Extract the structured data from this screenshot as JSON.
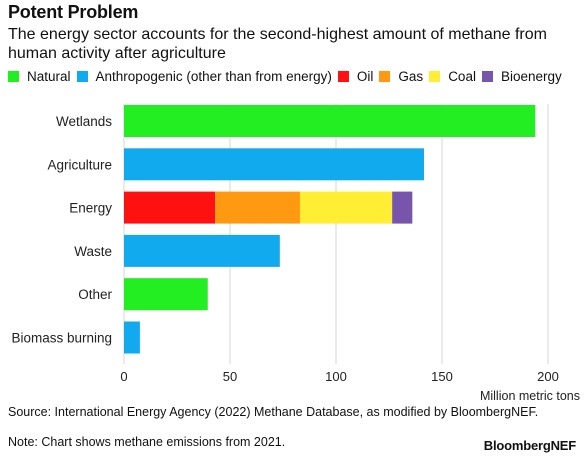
{
  "header": {
    "title": "Potent Problem",
    "subtitle": "The energy sector accounts for the second-highest amount of methane from human activity after agriculture"
  },
  "legend": {
    "items": [
      {
        "label": "Natural",
        "color": "#22ee22"
      },
      {
        "label": "Anthropogenic (other than from energy)",
        "color": "#11aaee"
      },
      {
        "label": "Oil",
        "color": "#ff1111"
      },
      {
        "label": "Gas",
        "color": "#ff9911"
      },
      {
        "label": "Coal",
        "color": "#ffee33"
      },
      {
        "label": "Bioenergy",
        "color": "#7755aa"
      }
    ]
  },
  "chart_data": {
    "type": "bar",
    "orientation": "horizontal",
    "stacked": true,
    "categories": [
      "Wetlands",
      "Agriculture",
      "Energy",
      "Waste",
      "Other",
      "Biomass burning"
    ],
    "series": [
      {
        "name": "Natural",
        "color": "#22ee22",
        "values": [
          194,
          0,
          0,
          0,
          39.5,
          0
        ]
      },
      {
        "name": "Anthropogenic (other than from energy)",
        "color": "#11aaee",
        "values": [
          0,
          141.5,
          0,
          73.5,
          0,
          7.5
        ]
      },
      {
        "name": "Oil",
        "color": "#ff1111",
        "values": [
          0,
          0,
          43,
          0,
          0,
          0
        ]
      },
      {
        "name": "Gas",
        "color": "#ff9911",
        "values": [
          0,
          0,
          40,
          0,
          0,
          0
        ]
      },
      {
        "name": "Coal",
        "color": "#ffee33",
        "values": [
          0,
          0,
          43.5,
          0,
          0,
          0
        ]
      },
      {
        "name": "Bioenergy",
        "color": "#7755aa",
        "values": [
          0,
          0,
          9.5,
          0,
          0,
          0
        ]
      }
    ],
    "xlim": [
      0,
      200
    ],
    "xticks": [
      0,
      50,
      100,
      150,
      200
    ],
    "xlabel": "Million metric tons",
    "ylabel": "",
    "grid": "vertical gridlines",
    "legend_position": "top"
  },
  "footer": {
    "source": "Source: International Energy Agency (2022) Methane Database, as modified by BloombergNEF.",
    "note": "Note: Chart shows methane emissions from 2021.",
    "brand": "BloombergNEF"
  }
}
